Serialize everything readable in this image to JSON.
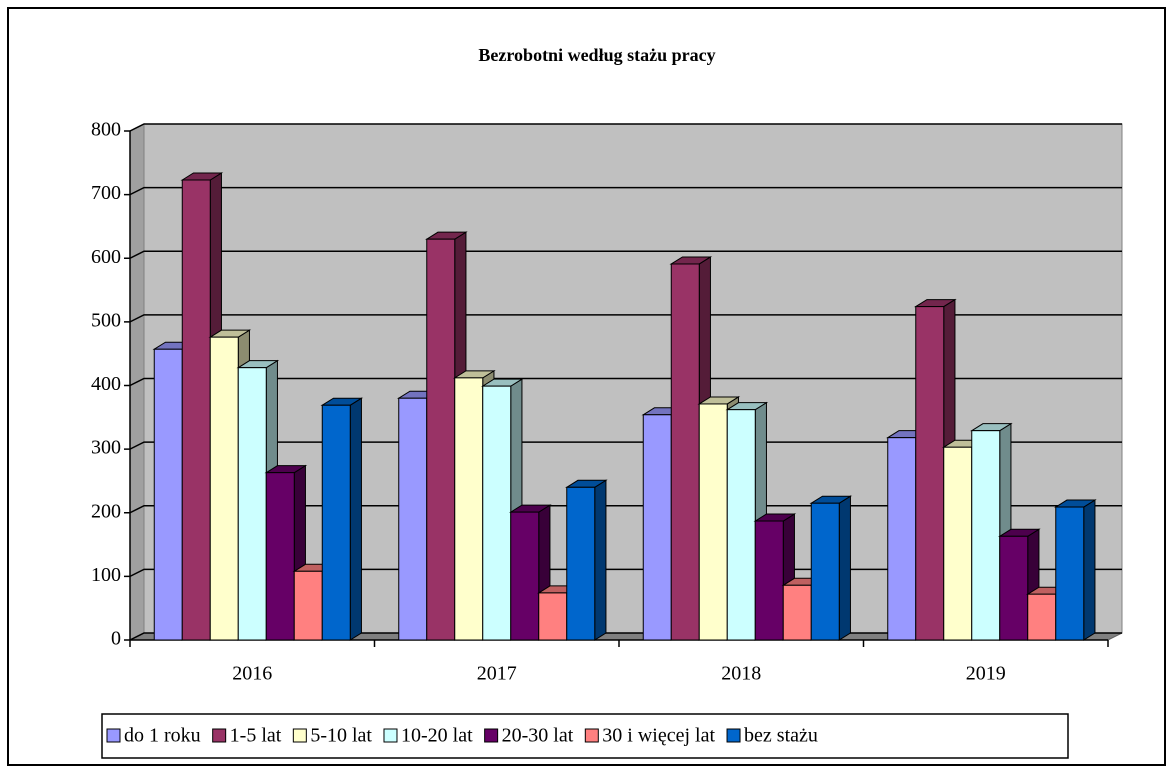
{
  "chart_data": {
    "type": "bar3d",
    "title": "Bezrobotni według stażu pracy",
    "categories": [
      "2016",
      "2017",
      "2018",
      "2019"
    ],
    "series": [
      {
        "name": "do 1 roku",
        "color": "#9999ff",
        "values": [
          457,
          380,
          354,
          318
        ]
      },
      {
        "name": "1-5 lat",
        "color": "#993366",
        "values": [
          723,
          630,
          591,
          524
        ]
      },
      {
        "name": "5-10 lat",
        "color": "#ffffcc",
        "values": [
          476,
          412,
          371,
          303
        ]
      },
      {
        "name": "10-20 lat",
        "color": "#ccffff",
        "values": [
          428,
          399,
          362,
          329
        ]
      },
      {
        "name": "20-30 lat",
        "color": "#660066",
        "values": [
          263,
          201,
          187,
          163
        ]
      },
      {
        "name": "30 i więcej lat",
        "color": "#ff8080",
        "values": [
          108,
          74,
          86,
          72
        ]
      },
      {
        "name": "bez stażu",
        "color": "#0066cc",
        "values": [
          369,
          240,
          215,
          209
        ]
      }
    ],
    "ylim": [
      0,
      800
    ],
    "yticks": [
      0,
      100,
      200,
      300,
      400,
      500,
      600,
      700,
      800
    ],
    "grid": true,
    "legend": "bottom"
  }
}
